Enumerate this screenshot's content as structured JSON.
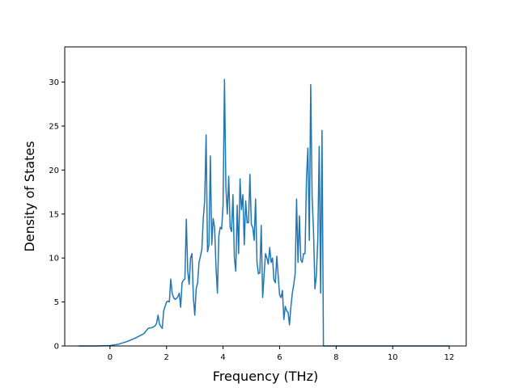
{
  "chart_data": {
    "type": "line",
    "title": "",
    "xlabel": "Frequency (THz)",
    "ylabel": "Density of States",
    "xlim": [
      -1.6,
      12.6
    ],
    "ylim": [
      0,
      34
    ],
    "xticks": [
      0,
      2,
      4,
      6,
      8,
      10,
      12
    ],
    "yticks": [
      0,
      5,
      10,
      15,
      20,
      25,
      30
    ],
    "grid": false,
    "legend": "none",
    "line_color": "#1f77b4",
    "series": [
      {
        "x": [
          -1.1,
          -0.5,
          0.0,
          0.3,
          0.6,
          0.9,
          1.2,
          1.35,
          1.5,
          1.6,
          1.65,
          1.7,
          1.75,
          1.8,
          1.85,
          1.9,
          1.95,
          2.0,
          2.05,
          2.1,
          2.15,
          2.2,
          2.25,
          2.3,
          2.35,
          2.4,
          2.45,
          2.5,
          2.55,
          2.6,
          2.65,
          2.7,
          2.75,
          2.8,
          2.85,
          2.9,
          2.95,
          3.0,
          3.05,
          3.1,
          3.15,
          3.2,
          3.25,
          3.3,
          3.35,
          3.4,
          3.45,
          3.5,
          3.55,
          3.6,
          3.65,
          3.7,
          3.75,
          3.8,
          3.85,
          3.9,
          3.95,
          4.0,
          4.05,
          4.1,
          4.15,
          4.2,
          4.25,
          4.3,
          4.35,
          4.4,
          4.45,
          4.5,
          4.55,
          4.6,
          4.65,
          4.7,
          4.75,
          4.8,
          4.85,
          4.9,
          4.95,
          5.0,
          5.05,
          5.1,
          5.15,
          5.2,
          5.25,
          5.3,
          5.35,
          5.4,
          5.45,
          5.5,
          5.55,
          5.6,
          5.65,
          5.7,
          5.75,
          5.8,
          5.85,
          5.9,
          5.95,
          6.0,
          6.05,
          6.1,
          6.15,
          6.2,
          6.25,
          6.3,
          6.35,
          6.4,
          6.45,
          6.5,
          6.55,
          6.6,
          6.65,
          6.7,
          6.75,
          6.8,
          6.85,
          6.9,
          6.95,
          7.0,
          7.05,
          7.1,
          7.15,
          7.2,
          7.25,
          7.3,
          7.35,
          7.4,
          7.45,
          7.5,
          7.55,
          7.6,
          7.65,
          7.7,
          7.75,
          7.8,
          7.85,
          7.9,
          7.95,
          8.0,
          8.05,
          8.1,
          8.15,
          8.2,
          8.25,
          8.3,
          8.35,
          8.4,
          8.45,
          8.5,
          8.55,
          8.6,
          8.65,
          8.7,
          8.75,
          8.8,
          8.85,
          8.9,
          8.95,
          9.0,
          9.05,
          9.1,
          9.15,
          9.2,
          9.25,
          9.3,
          9.35,
          9.4,
          9.5,
          10.0,
          10.1,
          10.2,
          10.25,
          10.3,
          10.4,
          10.5,
          10.6,
          10.65,
          10.7,
          10.75,
          10.8,
          10.85,
          10.9,
          11.0,
          11.5,
          12.0
        ],
        "y": [
          0,
          0,
          0.05,
          0.2,
          0.5,
          0.9,
          1.4,
          2.0,
          2.1,
          2.3,
          2.6,
          3.5,
          2.5,
          2.2,
          2.0,
          4.0,
          4.5,
          5.0,
          5.1,
          5.0,
          7.6,
          6.0,
          5.5,
          5.3,
          5.4,
          5.6,
          6.0,
          4.4,
          7.2,
          7.5,
          7.6,
          14.4,
          8.5,
          7.0,
          10.0,
          10.5,
          5.5,
          3.5,
          6.5,
          7.2,
          9.5,
          10.2,
          11.0,
          14.5,
          16.5,
          24.0,
          10.7,
          11.5,
          21.6,
          11.5,
          14.5,
          13.5,
          9.0,
          6.0,
          12.5,
          13.5,
          13.3,
          16.0,
          30.3,
          18.0,
          15.0,
          19.3,
          13.5,
          13.0,
          17.2,
          10.0,
          8.5,
          16.0,
          10.5,
          19.0,
          15.5,
          17.2,
          11.5,
          16.5,
          14.0,
          14.0,
          19.5,
          13.8,
          13.5,
          12.0,
          16.7,
          9.5,
          8.2,
          8.3,
          13.7,
          5.5,
          8.0,
          10.5,
          10.0,
          9.3,
          11.2,
          9.5,
          10.0,
          7.5,
          7.2,
          10.2,
          8.0,
          5.8,
          5.5,
          6.3,
          3.0,
          4.5,
          4.0,
          3.8,
          2.4,
          4.5,
          6.0,
          7.0,
          8.2,
          16.7,
          9.5,
          14.8,
          9.8,
          9.5,
          10.5,
          10.5,
          19.0,
          22.5,
          12.0,
          29.7,
          17.0,
          13.0,
          6.5,
          8.0,
          12.0,
          22.7,
          6.0,
          24.5,
          0,
          0,
          0,
          0,
          0,
          0,
          0,
          0,
          0,
          0,
          0,
          0,
          0,
          0,
          0,
          0,
          0,
          0,
          0,
          0,
          0,
          0,
          0,
          0,
          0,
          0,
          0,
          0,
          0,
          0,
          0,
          0,
          0,
          0,
          0,
          0,
          0,
          0,
          0,
          0,
          0,
          0,
          0,
          0,
          0,
          0,
          0,
          0,
          0,
          0,
          0,
          0,
          0,
          0,
          0,
          0
        ]
      }
    ]
  }
}
